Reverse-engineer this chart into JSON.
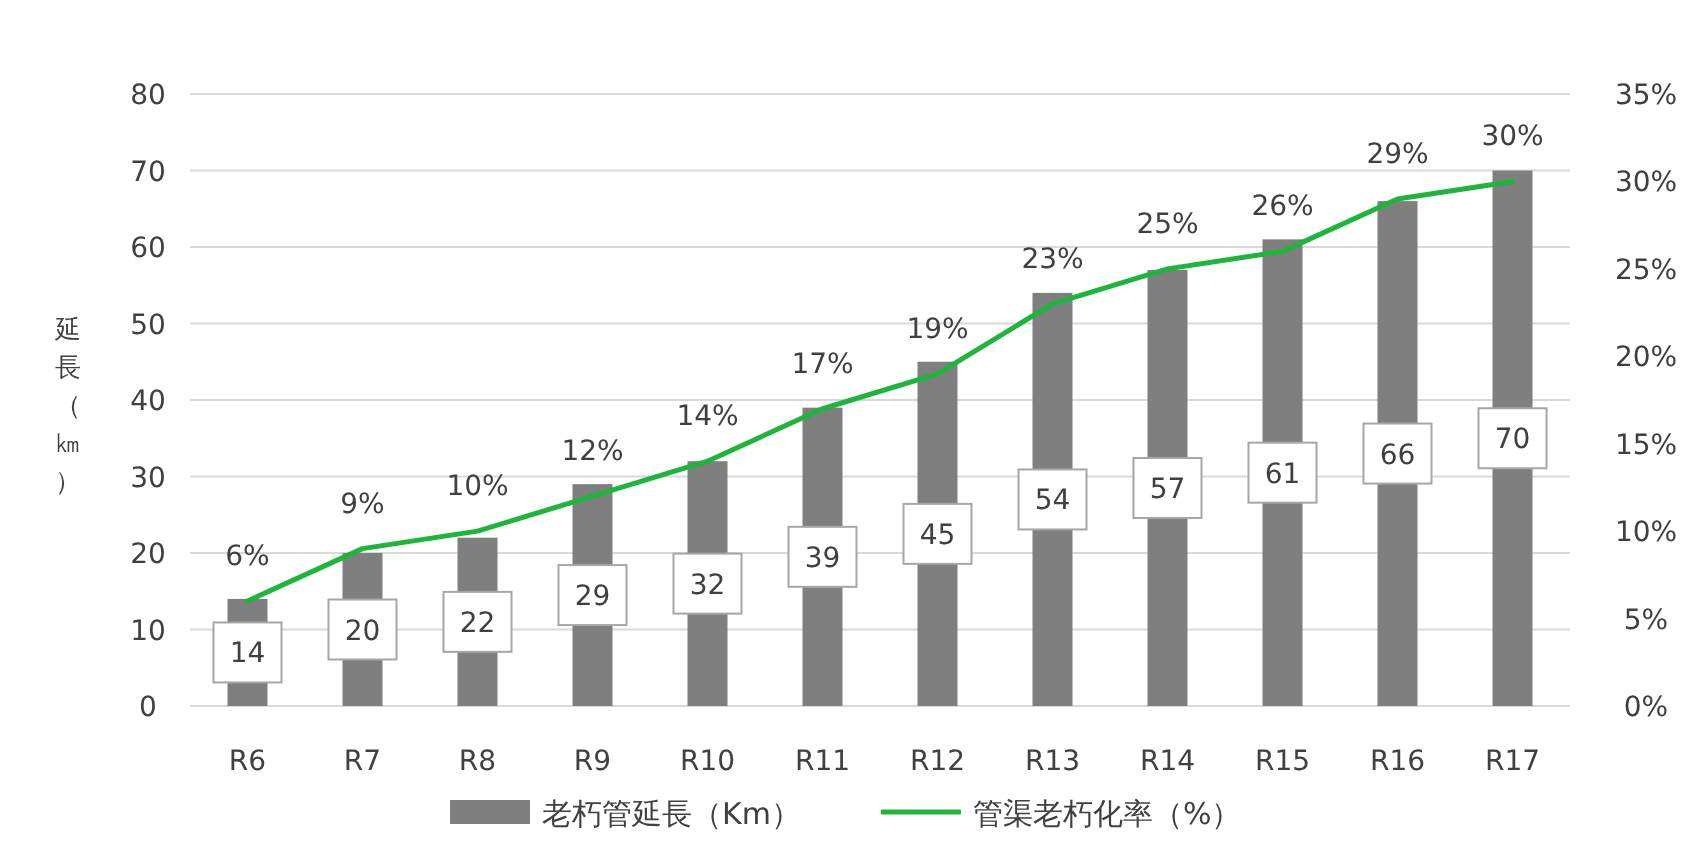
{
  "chart_data": {
    "type": "bar",
    "ylabel": "延長（㎞）",
    "categories": [
      "R6",
      "R7",
      "R8",
      "R9",
      "R10",
      "R11",
      "R12",
      "R13",
      "R14",
      "R15",
      "R16",
      "R17"
    ],
    "series": [
      {
        "name": "老朽管延長（Km）",
        "color": "#7f7f7f",
        "values": [
          14,
          20,
          22,
          29,
          32,
          39,
          45,
          54,
          57,
          61,
          66,
          70
        ]
      },
      {
        "name": "管渠老朽化率（%）",
        "type": "line",
        "axis": "y2",
        "color": "#1db53b",
        "values": [
          6,
          9,
          10,
          12,
          14,
          17,
          19,
          23,
          25,
          26,
          29,
          30
        ],
        "value_labels": [
          "6%",
          "9%",
          "10%",
          "12%",
          "14%",
          "17%",
          "19%",
          "23%",
          "25%",
          "26%",
          "29%",
          "30%"
        ]
      }
    ],
    "data_labels": true,
    "ylim": [
      0,
      80
    ],
    "yticks": [
      0,
      10,
      20,
      30,
      40,
      50,
      60,
      70,
      80
    ],
    "y2lim": [
      0,
      35
    ],
    "y2ticks": [
      {
        "value": 0,
        "label": "0%"
      },
      {
        "value": 5,
        "label": "5%"
      },
      {
        "value": 10,
        "label": "10%"
      },
      {
        "value": 15,
        "label": "15%"
      },
      {
        "value": 20,
        "label": "20%"
      },
      {
        "value": 25,
        "label": "25%"
      },
      {
        "value": 30,
        "label": "30%"
      },
      {
        "value": 35,
        "label": "35%"
      }
    ],
    "grid": "y",
    "legend": "bottom",
    "marker": "none"
  }
}
